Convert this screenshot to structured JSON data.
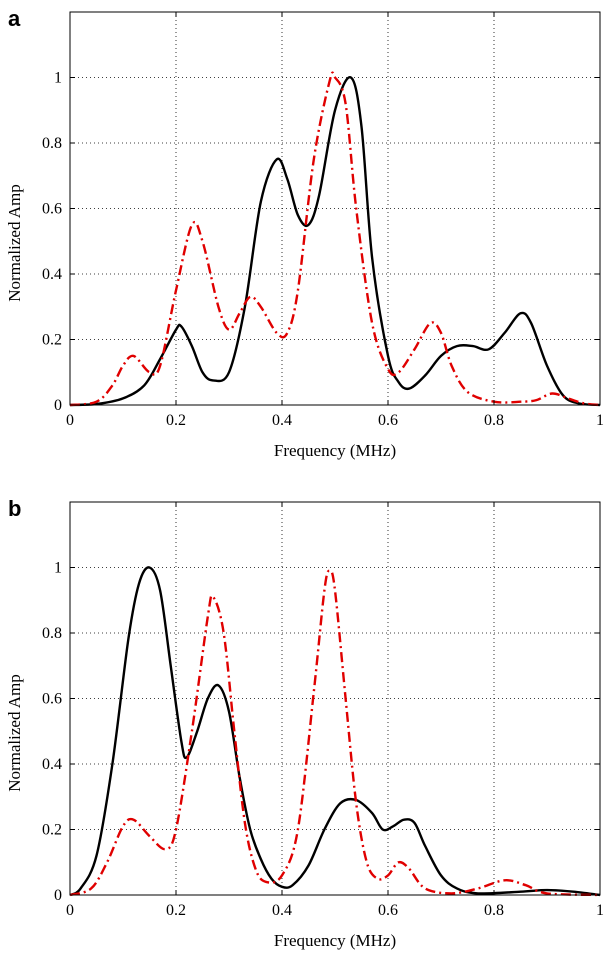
{
  "chart_data": [
    {
      "panel_label": "a",
      "type": "line",
      "xlabel": "Frequency (MHz)",
      "ylabel": "Normalized Amp",
      "xlim": [
        0,
        1
      ],
      "ylim": [
        0,
        1.2
      ],
      "xticks": [
        "0",
        "0.2",
        "0.4",
        "0.6",
        "0.8",
        "1"
      ],
      "yticks": [
        "0",
        "0.2",
        "0.4",
        "0.6",
        "0.8",
        "1"
      ],
      "grid": true,
      "series": [
        {
          "color": "#000000",
          "style": "solid",
          "points": [
            [
              0,
              0
            ],
            [
              0.05,
              0.003
            ],
            [
              0.1,
              0.02
            ],
            [
              0.14,
              0.06
            ],
            [
              0.17,
              0.14
            ],
            [
              0.2,
              0.23
            ],
            [
              0.21,
              0.24
            ],
            [
              0.23,
              0.18
            ],
            [
              0.25,
              0.1
            ],
            [
              0.27,
              0.075
            ],
            [
              0.3,
              0.1
            ],
            [
              0.33,
              0.3
            ],
            [
              0.36,
              0.62
            ],
            [
              0.39,
              0.75
            ],
            [
              0.41,
              0.69
            ],
            [
              0.43,
              0.58
            ],
            [
              0.45,
              0.55
            ],
            [
              0.47,
              0.64
            ],
            [
              0.5,
              0.9
            ],
            [
              0.53,
              1.0
            ],
            [
              0.55,
              0.85
            ],
            [
              0.57,
              0.45
            ],
            [
              0.6,
              0.15
            ],
            [
              0.62,
              0.07
            ],
            [
              0.64,
              0.05
            ],
            [
              0.67,
              0.09
            ],
            [
              0.7,
              0.15
            ],
            [
              0.73,
              0.18
            ],
            [
              0.76,
              0.18
            ],
            [
              0.79,
              0.17
            ],
            [
              0.82,
              0.22
            ],
            [
              0.85,
              0.28
            ],
            [
              0.87,
              0.25
            ],
            [
              0.9,
              0.12
            ],
            [
              0.93,
              0.03
            ],
            [
              0.96,
              0.005
            ],
            [
              1.0,
              0
            ]
          ]
        },
        {
          "color": "#e00000",
          "style": "dash-dot",
          "points": [
            [
              0,
              0
            ],
            [
              0.05,
              0.01
            ],
            [
              0.08,
              0.06
            ],
            [
              0.1,
              0.12
            ],
            [
              0.12,
              0.15
            ],
            [
              0.15,
              0.1
            ],
            [
              0.17,
              0.12
            ],
            [
              0.2,
              0.35
            ],
            [
              0.23,
              0.55
            ],
            [
              0.25,
              0.5
            ],
            [
              0.28,
              0.3
            ],
            [
              0.3,
              0.23
            ],
            [
              0.32,
              0.28
            ],
            [
              0.34,
              0.33
            ],
            [
              0.36,
              0.3
            ],
            [
              0.39,
              0.22
            ],
            [
              0.41,
              0.22
            ],
            [
              0.43,
              0.35
            ],
            [
              0.46,
              0.75
            ],
            [
              0.49,
              0.99
            ],
            [
              0.5,
              1.0
            ],
            [
              0.52,
              0.92
            ],
            [
              0.54,
              0.6
            ],
            [
              0.57,
              0.25
            ],
            [
              0.6,
              0.11
            ],
            [
              0.62,
              0.1
            ],
            [
              0.65,
              0.17
            ],
            [
              0.68,
              0.25
            ],
            [
              0.7,
              0.22
            ],
            [
              0.72,
              0.12
            ],
            [
              0.75,
              0.04
            ],
            [
              0.8,
              0.01
            ],
            [
              0.85,
              0.01
            ],
            [
              0.88,
              0.015
            ],
            [
              0.91,
              0.035
            ],
            [
              0.94,
              0.02
            ],
            [
              0.97,
              0.005
            ],
            [
              1.0,
              0
            ]
          ]
        }
      ]
    },
    {
      "panel_label": "b",
      "type": "line",
      "xlabel": "Frequency (MHz)",
      "ylabel": "Normalized Amp",
      "xlim": [
        0,
        1
      ],
      "ylim": [
        0,
        1.2
      ],
      "xticks": [
        "0",
        "0.2",
        "0.4",
        "0.6",
        "0.8",
        "1"
      ],
      "yticks": [
        "0",
        "0.2",
        "0.4",
        "0.6",
        "0.8",
        "1"
      ],
      "grid": true,
      "series": [
        {
          "color": "#000000",
          "style": "solid",
          "points": [
            [
              0,
              0
            ],
            [
              0.02,
              0.02
            ],
            [
              0.05,
              0.12
            ],
            [
              0.08,
              0.4
            ],
            [
              0.11,
              0.78
            ],
            [
              0.13,
              0.95
            ],
            [
              0.15,
              1.0
            ],
            [
              0.17,
              0.93
            ],
            [
              0.19,
              0.7
            ],
            [
              0.21,
              0.47
            ],
            [
              0.22,
              0.42
            ],
            [
              0.24,
              0.5
            ],
            [
              0.26,
              0.6
            ],
            [
              0.28,
              0.64
            ],
            [
              0.3,
              0.56
            ],
            [
              0.32,
              0.36
            ],
            [
              0.34,
              0.2
            ],
            [
              0.36,
              0.11
            ],
            [
              0.38,
              0.05
            ],
            [
              0.4,
              0.025
            ],
            [
              0.42,
              0.03
            ],
            [
              0.45,
              0.09
            ],
            [
              0.48,
              0.2
            ],
            [
              0.51,
              0.28
            ],
            [
              0.54,
              0.29
            ],
            [
              0.57,
              0.25
            ],
            [
              0.59,
              0.2
            ],
            [
              0.61,
              0.21
            ],
            [
              0.63,
              0.23
            ],
            [
              0.65,
              0.22
            ],
            [
              0.67,
              0.15
            ],
            [
              0.7,
              0.06
            ],
            [
              0.73,
              0.02
            ],
            [
              0.77,
              0.005
            ],
            [
              0.85,
              0.01
            ],
            [
              0.9,
              0.015
            ],
            [
              0.95,
              0.01
            ],
            [
              1.0,
              0
            ]
          ]
        },
        {
          "color": "#e00000",
          "style": "dash-dot",
          "points": [
            [
              0,
              0
            ],
            [
              0.04,
              0.02
            ],
            [
              0.07,
              0.1
            ],
            [
              0.1,
              0.21
            ],
            [
              0.12,
              0.23
            ],
            [
              0.15,
              0.18
            ],
            [
              0.18,
              0.14
            ],
            [
              0.2,
              0.2
            ],
            [
              0.23,
              0.5
            ],
            [
              0.26,
              0.85
            ],
            [
              0.27,
              0.91
            ],
            [
              0.29,
              0.8
            ],
            [
              0.31,
              0.5
            ],
            [
              0.33,
              0.22
            ],
            [
              0.35,
              0.08
            ],
            [
              0.37,
              0.04
            ],
            [
              0.4,
              0.06
            ],
            [
              0.43,
              0.2
            ],
            [
              0.46,
              0.62
            ],
            [
              0.48,
              0.93
            ],
            [
              0.49,
              0.99
            ],
            [
              0.5,
              0.93
            ],
            [
              0.52,
              0.6
            ],
            [
              0.54,
              0.28
            ],
            [
              0.56,
              0.1
            ],
            [
              0.58,
              0.05
            ],
            [
              0.6,
              0.06
            ],
            [
              0.62,
              0.1
            ],
            [
              0.64,
              0.08
            ],
            [
              0.67,
              0.02
            ],
            [
              0.72,
              0.005
            ],
            [
              0.77,
              0.02
            ],
            [
              0.82,
              0.045
            ],
            [
              0.86,
              0.03
            ],
            [
              0.9,
              0.005
            ],
            [
              1.0,
              0
            ]
          ]
        }
      ]
    }
  ]
}
